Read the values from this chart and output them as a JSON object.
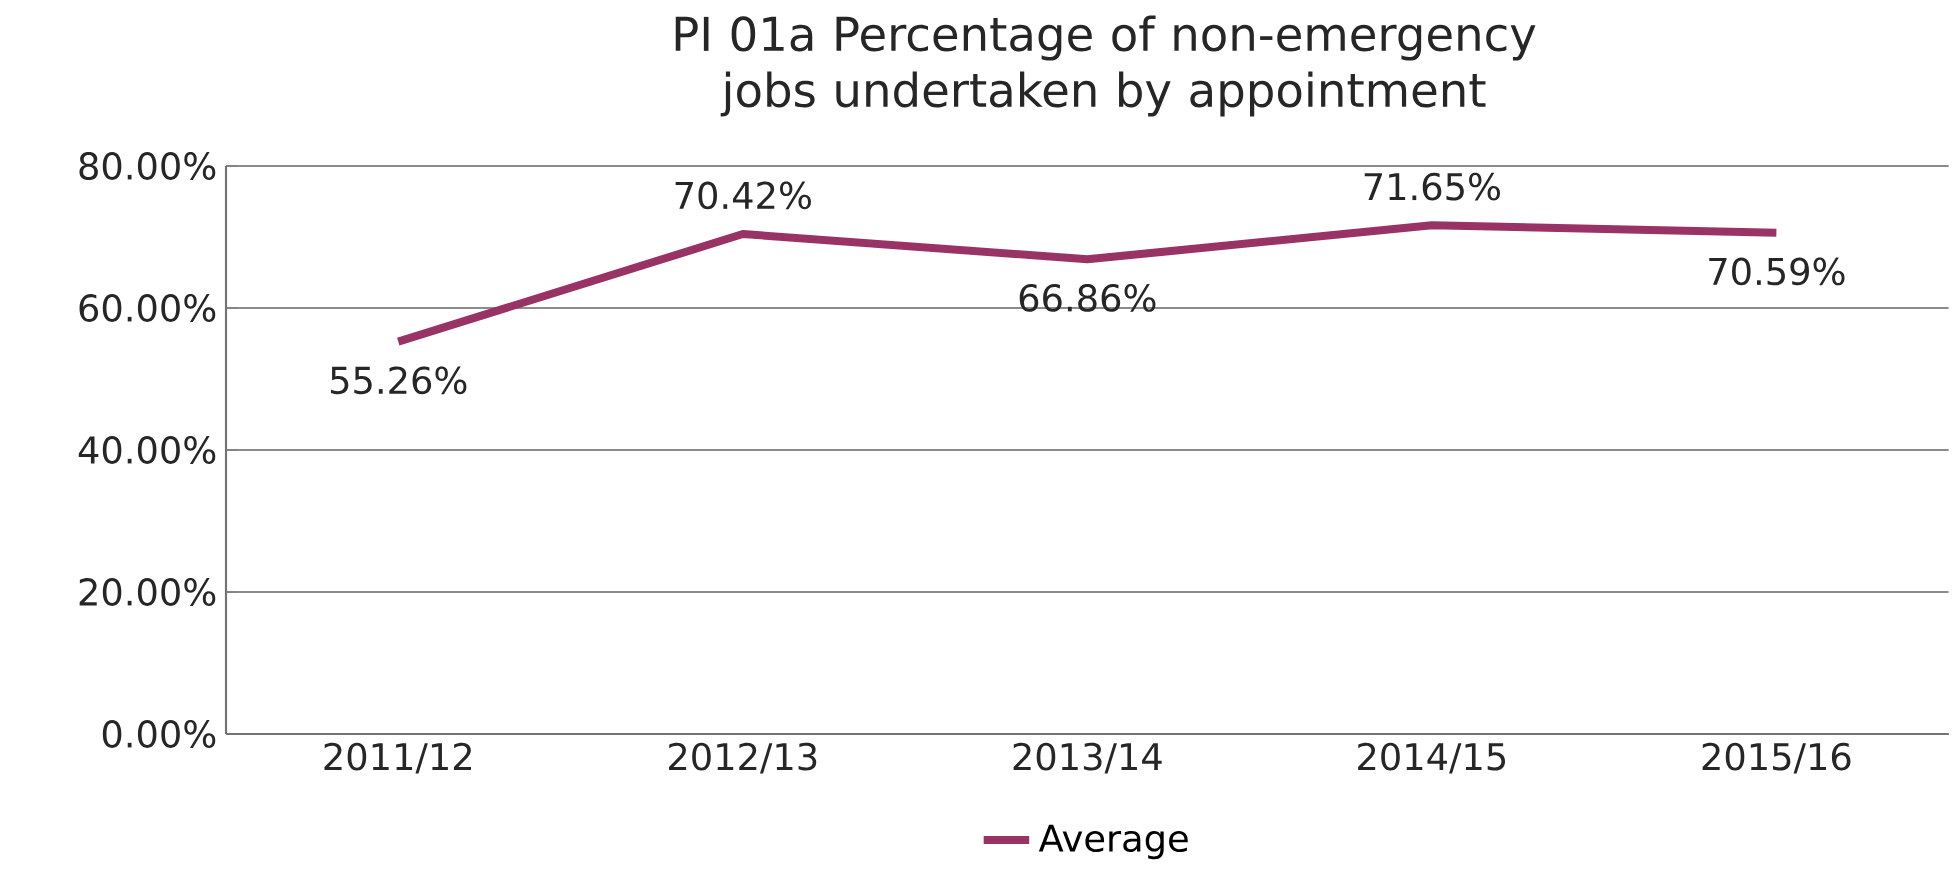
{
  "chart_data": {
    "type": "line",
    "title": "PI 01a Percentage of non-emergency jobs undertaken by appointment",
    "categories": [
      "2011/12",
      "2012/13",
      "2013/14",
      "2014/15",
      "2015/16"
    ],
    "series": [
      {
        "name": "Average",
        "color": "#993366",
        "values": [
          55.26,
          70.42,
          66.86,
          71.65,
          70.59
        ],
        "value_labels": [
          "55.26%",
          "70.42%",
          "66.86%",
          "71.65%",
          "70.59%"
        ]
      }
    ],
    "ylim": [
      0,
      80
    ],
    "yticks": [
      {
        "value": 0,
        "label": "0.00%"
      },
      {
        "value": 20,
        "label": "20.00%"
      },
      {
        "value": 40,
        "label": "40.00%"
      },
      {
        "value": 60,
        "label": "60.00%"
      },
      {
        "value": 80,
        "label": "80.00%"
      }
    ],
    "grid": "y",
    "legend": "bottom",
    "marker": "none",
    "line_style": "solid"
  }
}
